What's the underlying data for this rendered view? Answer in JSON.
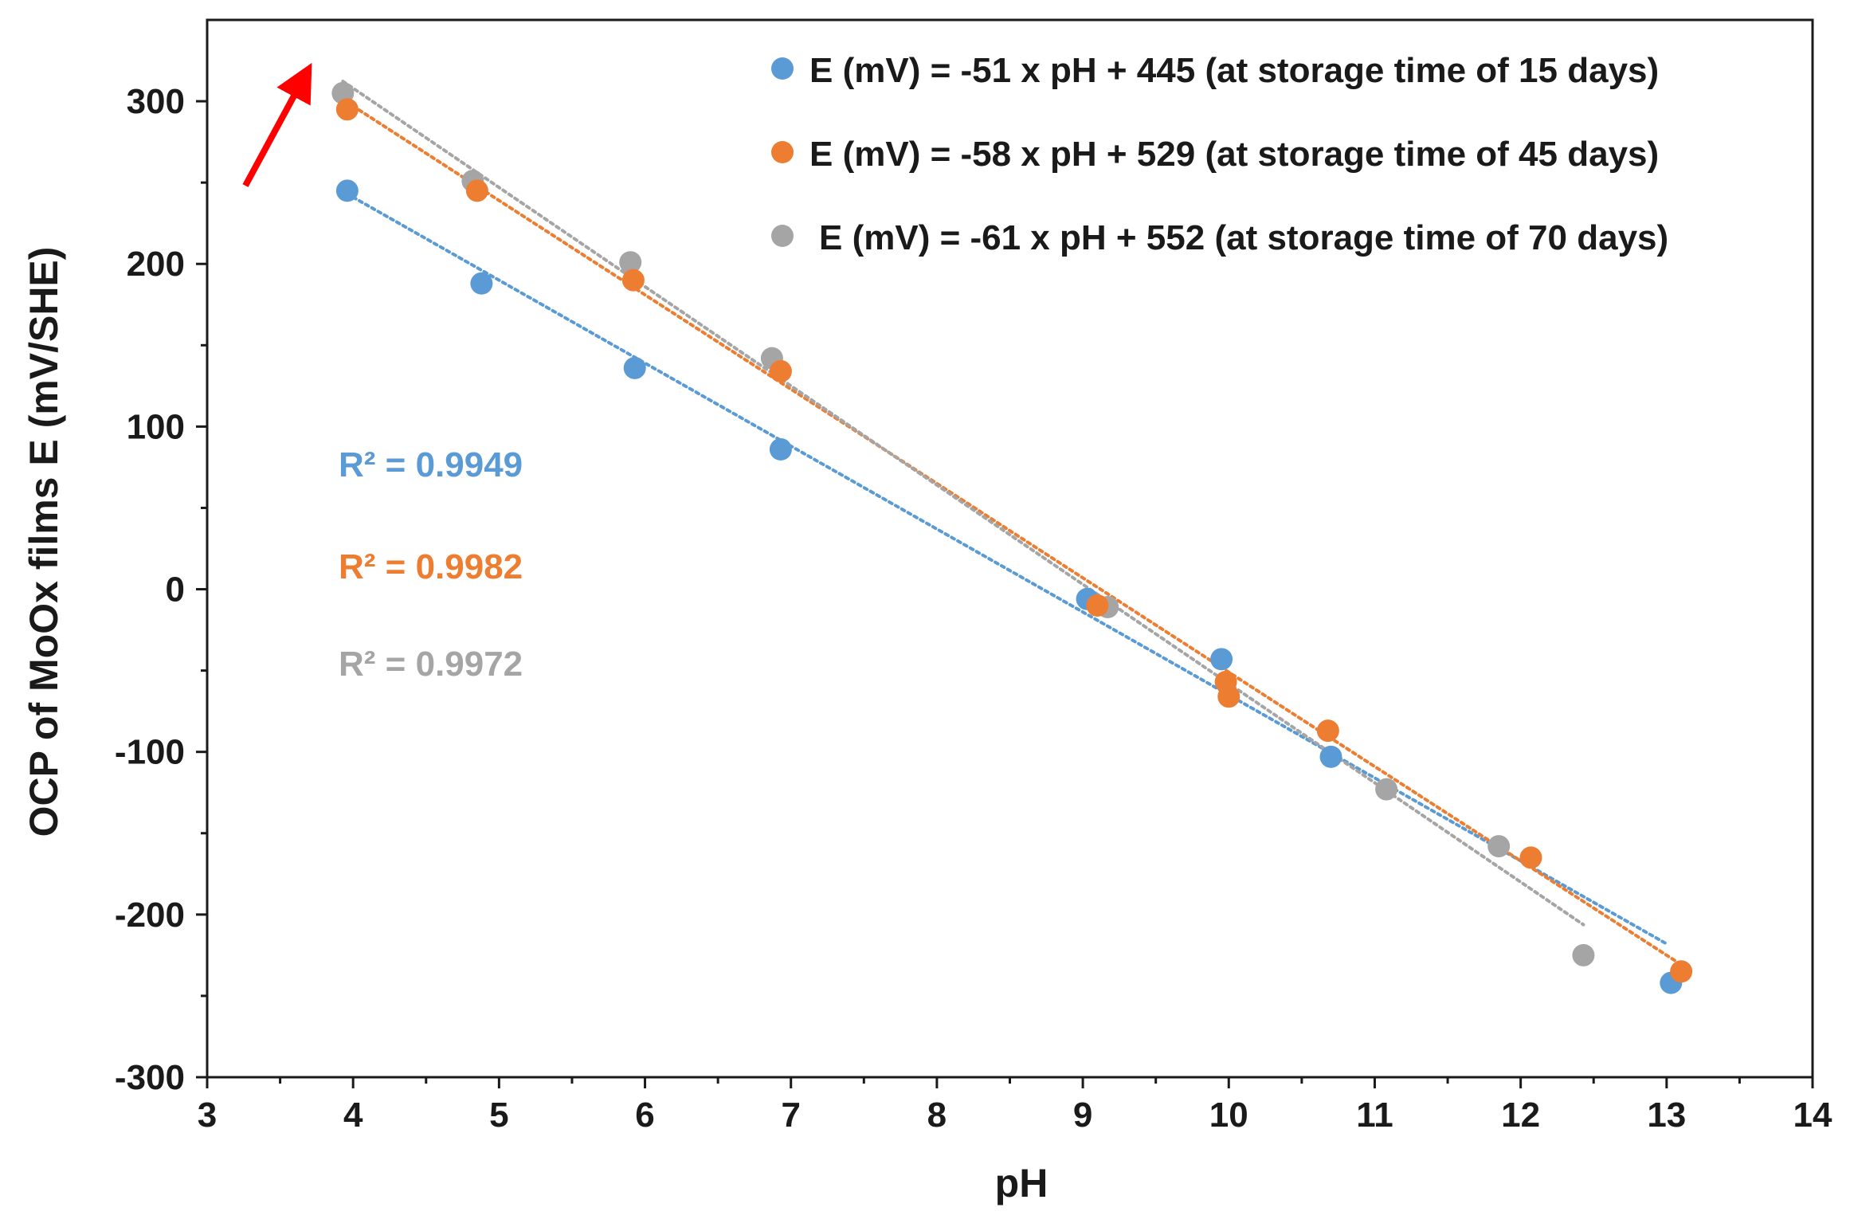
{
  "chart_data": {
    "type": "scatter",
    "title": "",
    "xlabel": "pH",
    "ylabel": "OCP of MoOx films E (mV/SHE)",
    "xlim": [
      3,
      14
    ],
    "ylim": [
      -300,
      350
    ],
    "x_ticks": [
      3,
      4,
      5,
      6,
      7,
      8,
      9,
      10,
      11,
      12,
      13,
      14
    ],
    "y_ticks": [
      -300,
      -200,
      -100,
      0,
      100,
      200,
      300
    ],
    "x_tick_labels": [
      "3",
      "4",
      "5",
      "6",
      "7",
      "8",
      "9",
      "10",
      "11",
      "12",
      "13",
      "14"
    ],
    "y_tick_labels": [
      "-300",
      "-200",
      "-100",
      "0",
      "100",
      "200",
      "300"
    ],
    "grid": false,
    "legend_position": "top-right",
    "series": [
      {
        "name": "E (mV) = -51 x pH + 445 (at storage time of 15 days)",
        "color": "#5b9bd5",
        "x": [
          3.96,
          4.88,
          5.93,
          6.93,
          9.03,
          9.95,
          10.7,
          13.03
        ],
        "y": [
          245,
          188,
          136,
          86,
          -6,
          -43,
          -103,
          -242
        ],
        "trendline": {
          "slope": -51,
          "intercept": 445,
          "x_range": [
            4.0,
            13.0
          ],
          "r2_label": "R² = 0.9949"
        }
      },
      {
        "name": "E (mV) = -58 x pH + 529 (at storage time of 45 days)",
        "color": "#ed7d31",
        "x": [
          3.96,
          4.85,
          5.92,
          6.93,
          9.1,
          9.98,
          10.0,
          10.68,
          12.07,
          13.1
        ],
        "y": [
          295,
          245,
          190,
          134,
          -10,
          -57,
          -66,
          -87,
          -165,
          -235
        ],
        "trendline": {
          "slope": -58,
          "intercept": 529,
          "x_range": [
            4.0,
            13.1
          ],
          "r2_label": "R² = 0.9982"
        }
      },
      {
        "name": "E (mV) = -61 x pH + 552 (at storage time of 70 days)",
        "color": "#a5a5a5",
        "x": [
          3.93,
          4.82,
          5.9,
          6.87,
          9.17,
          11.08,
          11.85,
          12.43
        ],
        "y": [
          305,
          251,
          201,
          142,
          -11,
          -123,
          -158,
          -225
        ],
        "trendline": {
          "slope": -61,
          "intercept": 552,
          "x_range": [
            3.93,
            12.43
          ],
          "r2_label": "R² = 0.9972"
        }
      }
    ],
    "annotations": [
      {
        "type": "arrow",
        "color": "#ff0000",
        "description": "red arrow pointing toward the top-left data points"
      }
    ]
  }
}
